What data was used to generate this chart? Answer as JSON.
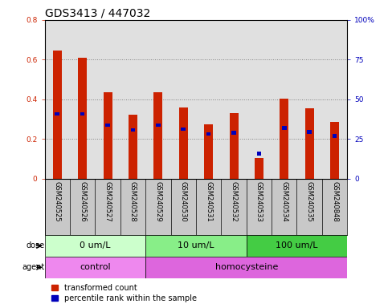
{
  "title": "GDS3413 / 447032",
  "samples": [
    "GSM240525",
    "GSM240526",
    "GSM240527",
    "GSM240528",
    "GSM240529",
    "GSM240530",
    "GSM240531",
    "GSM240532",
    "GSM240533",
    "GSM240534",
    "GSM240535",
    "GSM240848"
  ],
  "transformed_count": [
    0.645,
    0.61,
    0.435,
    0.32,
    0.435,
    0.36,
    0.275,
    0.33,
    0.105,
    0.405,
    0.355,
    0.285
  ],
  "percentile_rank_left": [
    0.325,
    0.325,
    0.27,
    0.245,
    0.27,
    0.25,
    0.225,
    0.23,
    0.125,
    0.255,
    0.235,
    0.215
  ],
  "ylim_left": [
    0,
    0.8
  ],
  "ylim_right": [
    0,
    100
  ],
  "yticks_left": [
    0,
    0.2,
    0.4,
    0.6,
    0.8
  ],
  "yticks_right": [
    0,
    25,
    50,
    75,
    100
  ],
  "ytick_labels_left": [
    "0",
    "0.2",
    "0.4",
    "0.6",
    "0.8"
  ],
  "ytick_labels_right": [
    "0",
    "25",
    "50",
    "75",
    "100%"
  ],
  "bar_color_red": "#CC2200",
  "bar_color_blue": "#0000BB",
  "bar_width": 0.35,
  "blue_bar_width": 0.18,
  "blue_bar_height": 0.018,
  "dose_groups": [
    {
      "label": "0 um/L",
      "start": 0,
      "end": 3,
      "color": "#CCFFCC"
    },
    {
      "label": "10 um/L",
      "start": 4,
      "end": 7,
      "color": "#88EE88"
    },
    {
      "label": "100 um/L",
      "start": 8,
      "end": 11,
      "color": "#44CC44"
    }
  ],
  "agent_groups": [
    {
      "label": "control",
      "start": 0,
      "end": 3,
      "color": "#EE88EE"
    },
    {
      "label": "homocysteine",
      "start": 4,
      "end": 11,
      "color": "#DD66DD"
    }
  ],
  "dose_label": "dose",
  "agent_label": "agent",
  "legend_red": "transformed count",
  "legend_blue": "percentile rank within the sample",
  "plot_bg_color": "#E0E0E0",
  "xtick_bg_color": "#C8C8C8",
  "title_fontsize": 10,
  "tick_fontsize": 6.5,
  "sample_fontsize": 6,
  "row_label_fontsize": 7,
  "group_label_fontsize": 8,
  "legend_fontsize": 7
}
